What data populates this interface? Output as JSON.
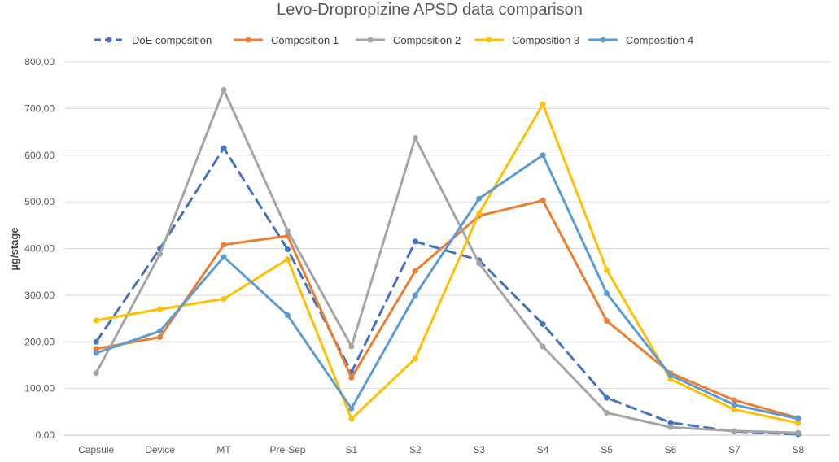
{
  "chart_data": {
    "type": "line",
    "title": "Levo-Dropropizine APSD data comparison",
    "xlabel": "",
    "ylabel": "µg/stage",
    "categories": [
      "Capsule",
      "Device",
      "MT",
      "Pre-Sep",
      "S1",
      "S2",
      "S3",
      "S4",
      "S5",
      "S6",
      "S7",
      "S8"
    ],
    "ylim": [
      0,
      800
    ],
    "yticks": [
      "0,00",
      "100,00",
      "200,00",
      "300,00",
      "400,00",
      "500,00",
      "600,00",
      "700,00",
      "800,00"
    ],
    "grid": true,
    "legend_position": "top",
    "series": [
      {
        "name": "DoE composition",
        "color": "#4472C4",
        "dashed": true,
        "values": [
          200,
          400,
          615,
          398,
          135,
          415,
          375,
          238,
          80,
          27,
          8,
          2
        ]
      },
      {
        "name": "Composition 1",
        "color": "#ED7D31",
        "dashed": false,
        "values": [
          185,
          210,
          408,
          427,
          123,
          352,
          470,
          503,
          245,
          133,
          75,
          37
        ]
      },
      {
        "name": "Composition 2",
        "color": "#A5A5A5",
        "dashed": false,
        "values": [
          133,
          388,
          740,
          438,
          190,
          637,
          368,
          190,
          48,
          17,
          9,
          5
        ]
      },
      {
        "name": "Composition 3",
        "color": "#FFC000",
        "dashed": false,
        "values": [
          246,
          270,
          292,
          377,
          35,
          164,
          475,
          709,
          354,
          120,
          55,
          26
        ]
      },
      {
        "name": "Composition 4",
        "color": "#5B9BD5",
        "dashed": false,
        "values": [
          176,
          223,
          382,
          257,
          57,
          300,
          507,
          600,
          304,
          128,
          65,
          35
        ]
      }
    ]
  }
}
